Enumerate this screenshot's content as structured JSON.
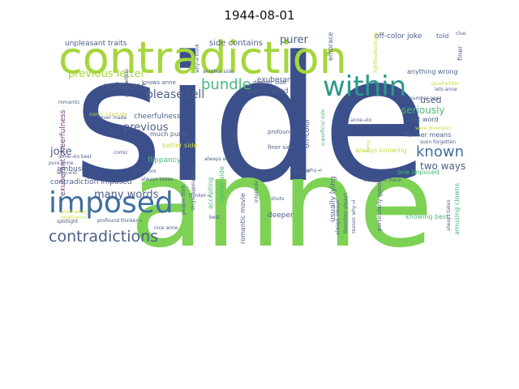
{
  "title": "1944-08-01",
  "colors": {
    "green": "#7dd155",
    "lime": "#a5d63b",
    "navy": "#3b4f8a",
    "blue": "#3f6fa0",
    "teal": "#2a9a89",
    "seagreen": "#4bb77c",
    "slate": "#4d5e86",
    "purple": "#71367c",
    "gray": "#555f8c",
    "yellow": "#c8d940"
  },
  "words": [
    {
      "text": "side",
      "color": "navy"
    },
    {
      "text": "anne",
      "color": "green"
    },
    {
      "text": "contradiction",
      "color": "lime"
    },
    {
      "text": "imposed",
      "color": "blue"
    },
    {
      "text": "within",
      "color": "teal"
    },
    {
      "text": "contradictions",
      "color": "slate"
    },
    {
      "text": "known",
      "color": "blue"
    },
    {
      "text": "bundle",
      "color": "seagreen"
    },
    {
      "text": "please tell",
      "color": "slate"
    },
    {
      "text": "opinions",
      "color": "slate"
    },
    {
      "text": "previous letter",
      "color": "lime"
    },
    {
      "text": "previous",
      "color": "slate"
    },
    {
      "text": "joke",
      "color": "slate"
    },
    {
      "text": "many words",
      "color": "slate"
    },
    {
      "text": "two ways",
      "color": "slate"
    },
    {
      "text": "seriously",
      "color": "seagreen"
    },
    {
      "text": "used",
      "color": "slate"
    },
    {
      "text": "purer",
      "color": "slate"
    },
    {
      "text": "side contains",
      "color": "slate"
    },
    {
      "text": "unpleasant traits",
      "color": "slate"
    },
    {
      "text": "off-color joke",
      "color": "slate"
    },
    {
      "text": "told",
      "color": "slate"
    },
    {
      "text": "cheerfulness",
      "color": "slate"
    },
    {
      "text": "exuberant cheerfulness",
      "color": "purple"
    },
    {
      "text": "ambush",
      "color": "slate"
    },
    {
      "text": "flippancy",
      "color": "seagreen"
    },
    {
      "text": "better side",
      "color": "yellow"
    },
    {
      "text": "much purer",
      "color": "gray"
    },
    {
      "text": "contradiction imposed",
      "color": "slate"
    },
    {
      "text": "interpreted",
      "color": "slate"
    },
    {
      "text": "exuberant",
      "color": "slate"
    },
    {
      "text": "deeper",
      "color": "slate"
    },
    {
      "text": "usually lying",
      "color": "slate"
    },
    {
      "text": "romantic movie",
      "color": "slate"
    },
    {
      "text": "accepting",
      "color": "seagreen"
    },
    {
      "text": "lighter side",
      "color": "seagreen"
    },
    {
      "text": "off-color",
      "color": "slate"
    },
    {
      "text": "last word",
      "color": "slate"
    },
    {
      "text": "former means",
      "color": "slate"
    },
    {
      "text": "one imposed",
      "color": "seagreen"
    },
    {
      "text": "always knowing",
      "color": "yellow"
    },
    {
      "text": "knowing best",
      "color": "seagreen"
    },
    {
      "text": "anything wrong",
      "color": "slate"
    },
    {
      "text": "embrace",
      "color": "slate"
    },
    {
      "text": "finer",
      "color": "slate"
    },
    {
      "text": "knows anne",
      "color": "slate"
    },
    {
      "text": "deeper side",
      "color": "slate"
    },
    {
      "text": "profound",
      "color": "gray"
    },
    {
      "text": "finer side",
      "color": "slate"
    },
    {
      "text": "amusing clowns",
      "color": "seagreen"
    },
    {
      "text": "always takes",
      "color": "slate"
    },
    {
      "text": "particularly good",
      "color": "slate"
    },
    {
      "text": "soon forgotten",
      "color": "slate"
    },
    {
      "text": "therefore",
      "color": "slate"
    },
    {
      "text": "shuts",
      "color": "slate"
    },
    {
      "text": "thinker→",
      "color": "slate"
    },
    {
      "text": "anne→to",
      "color": "slate"
    },
    {
      "text": "superficial side",
      "color": "seagreen"
    },
    {
      "text": "single appearance",
      "color": "gray"
    },
    {
      "text": "diversion",
      "color": "slate"
    },
    {
      "text": "interlude",
      "color": "slate"
    },
    {
      "text": "always win",
      "color": "slate"
    },
    {
      "text": "comic",
      "color": "slate"
    },
    {
      "text": "never made",
      "color": "slate"
    },
    {
      "text": "romantic",
      "color": "slate"
    },
    {
      "text": "pure anne",
      "color": "slate"
    },
    {
      "text": "anne→to best",
      "color": "slate"
    },
    {
      "text": "spotlight",
      "color": "slate"
    },
    {
      "text": "profound thinker→",
      "color": "slate"
    },
    {
      "text": "nice anne",
      "color": "slate"
    },
    {
      "text": "push away",
      "color": "yellow"
    },
    {
      "text": "good once",
      "color": "yellow"
    },
    {
      "text": "why→no",
      "color": "slate"
    },
    {
      "text": "best",
      "color": "slate"
    },
    {
      "text": "always tease",
      "color": "slate"
    },
    {
      "text": "people think",
      "color": "slate"
    },
    {
      "text": "amuse",
      "color": "slate"
    },
    {
      "text": "reason why→i",
      "color": "slate"
    },
    {
      "text": "thinker→s mere",
      "color": "slate"
    },
    {
      "text": "therefore always",
      "color": "slate"
    },
    {
      "text": "always always",
      "color": "slate"
    },
    {
      "text": "force",
      "color": "yellow"
    },
    {
      "text": "why→i",
      "color": "slate"
    },
    {
      "text": "lets anne",
      "color": "slate"
    },
    {
      "text": "good either",
      "color": "yellow"
    },
    {
      "text": "were diversion",
      "color": "yellow"
    },
    {
      "text": "number one",
      "color": "slate"
    },
    {
      "text": "lightheartedness",
      "color": "yellow"
    },
    {
      "text": "clue",
      "color": "slate"
    },
    {
      "text": "another side",
      "color": "slate"
    },
    {
      "text": "anne within",
      "color": "slate"
    },
    {
      "text": "why→i think",
      "color": "slate"
    },
    {
      "text": "comic interlude",
      "color": "yellow"
    }
  ]
}
